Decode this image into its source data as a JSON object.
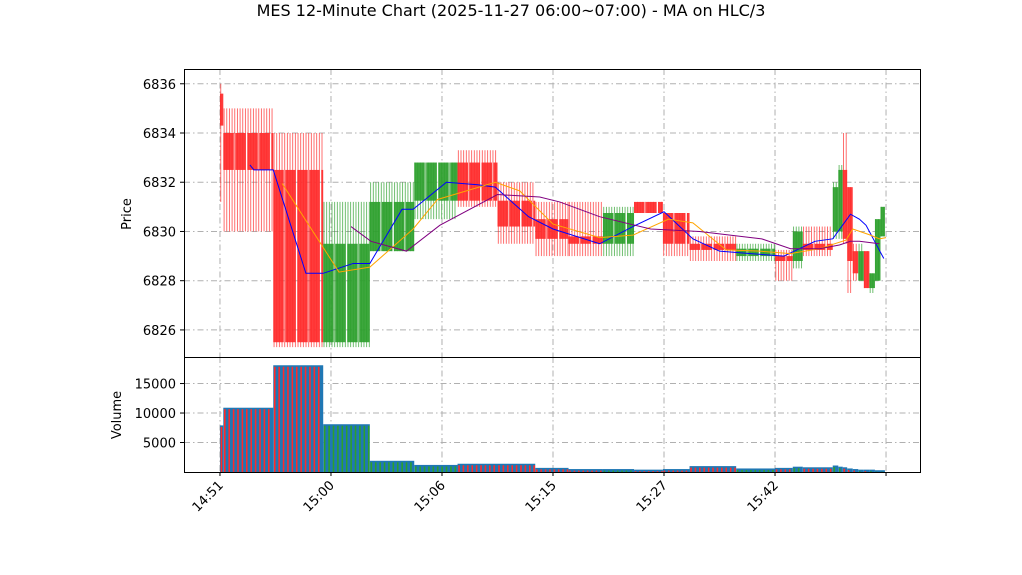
{
  "title": "MES 12-Minute Chart (2025-11-27 06:00~07:00) - MA on HLC/3",
  "colors": {
    "up": "#2ca02c",
    "down": "#ff2a2a",
    "volume_edge": "#1f77b4",
    "ma_fast": "#0000ff",
    "ma_mid": "#ffa500",
    "ma_slow": "#800080",
    "grid": "#b0b0b0"
  },
  "chart_data": {
    "type": "candlestick",
    "title": "MES 12-Minute Chart (2025-11-27 06:00~07:00) - MA on HLC/3",
    "price_panel": {
      "ylabel": "Price",
      "ylim": [
        6824.9,
        6836.6
      ],
      "yticks": [
        6826,
        6828,
        6830,
        6832,
        6834,
        6836
      ],
      "grid": true
    },
    "volume_panel": {
      "ylabel": "Volume",
      "ylim": [
        0,
        19500
      ],
      "yticks": [
        5000,
        10000,
        15000
      ],
      "grid": true
    },
    "x_axis": {
      "xlim": [
        -16.2,
        315.3
      ],
      "ticks": [
        0,
        50,
        100,
        150,
        200,
        250,
        300
      ],
      "tick_labels": [
        "14:51",
        "15:00",
        "15:06",
        "15:15",
        "15:27",
        "15:42",
        ""
      ]
    },
    "candles": [
      {
        "x": [
          0,
          1.5
        ],
        "o": 6835.6,
        "h": 6836,
        "l": 6831.2,
        "c": 6834.3,
        "v": 7900
      },
      {
        "x": [
          1.5,
          24
        ],
        "o": 6834,
        "h": 6835,
        "l": 6830,
        "c": 6832.5,
        "v": 10900
      },
      {
        "x": [
          24,
          46.5
        ],
        "o": 6832.5,
        "h": 6834,
        "l": 6825.3,
        "c": 6825.5,
        "v": 18100
      },
      {
        "x": [
          46.5,
          67.5
        ],
        "o": 6825.5,
        "h": 6831.2,
        "l": 6825.3,
        "c": 6829.5,
        "v": 8100
      },
      {
        "x": [
          67.5,
          87.5
        ],
        "o": 6829.2,
        "h": 6832,
        "l": 6829.2,
        "c": 6831.2,
        "v": 1900
      },
      {
        "x": [
          87.5,
          107
        ],
        "o": 6831.25,
        "h": 6832.8,
        "l": 6830.5,
        "c": 6832.8,
        "v": 1200
      },
      {
        "x": [
          107,
          125
        ],
        "o": 6832.8,
        "h": 6833.3,
        "l": 6831,
        "c": 6831.25,
        "v": 1400
      },
      {
        "x": [
          125,
          142
        ],
        "o": 6831.25,
        "h": 6832,
        "l": 6829.5,
        "c": 6830.2,
        "v": 1400
      },
      {
        "x": [
          142,
          157
        ],
        "o": 6830.5,
        "h": 6831.2,
        "l": 6829,
        "c": 6829.7,
        "v": 700
      },
      {
        "x": [
          157,
          172.5
        ],
        "o": 6829.8,
        "h": 6831.2,
        "l": 6829,
        "c": 6829.5,
        "v": 500
      },
      {
        "x": [
          172.5,
          186.5
        ],
        "o": 6829.5,
        "h": 6831,
        "l": 6829,
        "c": 6830.75,
        "v": 500
      },
      {
        "x": [
          186.5,
          199.5
        ],
        "o": 6831.2,
        "h": 6831.2,
        "l": 6830.75,
        "c": 6830.75,
        "v": 400
      },
      {
        "x": [
          199.5,
          211.5
        ],
        "o": 6830.75,
        "h": 6830.75,
        "l": 6829,
        "c": 6829.5,
        "v": 500
      },
      {
        "x": [
          211.5,
          232.5
        ],
        "o": 6829.5,
        "h": 6829.8,
        "l": 6828.8,
        "c": 6829.25,
        "v": 1000
      },
      {
        "x": [
          232.5,
          250
        ],
        "o": 6829,
        "h": 6829.5,
        "l": 6828.8,
        "c": 6829.3,
        "v": 600
      },
      {
        "x": [
          250,
          258
        ],
        "o": 6829,
        "h": 6829.25,
        "l": 6828,
        "c": 6828.8,
        "v": 700
      },
      {
        "x": [
          258,
          262.5
        ],
        "o": 6828.8,
        "h": 6830.2,
        "l": 6828.5,
        "c": 6830,
        "v": 900
      },
      {
        "x": [
          262.5,
          276
        ],
        "o": 6829.5,
        "h": 6830.2,
        "l": 6829,
        "c": 6829.25,
        "v": 800
      },
      {
        "x": [
          276,
          278.5
        ],
        "o": 6830,
        "h": 6832,
        "l": 6829.7,
        "c": 6831.8,
        "v": 1100
      },
      {
        "x": [
          278.5,
          280.5
        ],
        "o": 6830,
        "h": 6832.7,
        "l": 6829.7,
        "c": 6832.5,
        "v": 900
      },
      {
        "x": [
          280.5,
          282.5
        ],
        "o": 6832.5,
        "h": 6834,
        "l": 6829.5,
        "c": 6829.7,
        "v": 800
      },
      {
        "x": [
          282.5,
          285
        ],
        "o": 6831.8,
        "h": 6831.8,
        "l": 6827.5,
        "c": 6828.8,
        "v": 600
      },
      {
        "x": [
          285,
          287.5
        ],
        "o": 6829.2,
        "h": 6829.5,
        "l": 6828,
        "c": 6828.3,
        "v": 500
      },
      {
        "x": [
          287.5,
          290
        ],
        "o": 6828,
        "h": 6829.5,
        "l": 6828,
        "c": 6829.2,
        "v": 400
      },
      {
        "x": [
          290,
          292.5
        ],
        "o": 6829.2,
        "h": 6829.2,
        "l": 6827.7,
        "c": 6827.7,
        "v": 400
      },
      {
        "x": [
          292.5,
          295
        ],
        "o": 6827.7,
        "h": 6828.3,
        "l": 6827.5,
        "c": 6828.3,
        "v": 400
      },
      {
        "x": [
          295,
          297.5
        ],
        "o": 6828,
        "h": 6830.5,
        "l": 6828,
        "c": 6830.5,
        "v": 300
      },
      {
        "x": [
          297.5,
          299.5
        ],
        "o": 6829.8,
        "h": 6831,
        "l": 6829.8,
        "c": 6831,
        "v": 300
      }
    ],
    "moving_averages": [
      {
        "color": "#0000ff",
        "points": [
          [
            13.5,
            6832.7
          ],
          [
            15.3,
            6832.5
          ],
          [
            24,
            6832.5
          ],
          [
            38.7,
            6828.3
          ],
          [
            46.5,
            6828.3
          ],
          [
            60,
            6828.7
          ],
          [
            67.5,
            6828.7
          ],
          [
            82,
            6830.9
          ],
          [
            87,
            6830.9
          ],
          [
            102,
            6832
          ],
          [
            116,
            6831.9
          ],
          [
            124,
            6831.8
          ],
          [
            139,
            6830.6
          ],
          [
            150,
            6830.1
          ],
          [
            171,
            6829.5
          ],
          [
            186,
            6830.2
          ],
          [
            200,
            6830.8
          ],
          [
            213,
            6829.7
          ],
          [
            225,
            6829.2
          ],
          [
            239,
            6829.1
          ],
          [
            254,
            6829
          ],
          [
            268,
            6829.6
          ],
          [
            276,
            6829.7
          ],
          [
            284,
            6830.7
          ],
          [
            288,
            6830.5
          ],
          [
            291,
            6830.25
          ],
          [
            299,
            6828.9
          ]
        ]
      },
      {
        "color": "#ffa500",
        "points": [
          [
            28,
            6831.95
          ],
          [
            53.6,
            6828.35
          ],
          [
            67.5,
            6828.55
          ],
          [
            87,
            6830.1
          ],
          [
            98,
            6831.3
          ],
          [
            124,
            6832
          ],
          [
            135,
            6831.65
          ],
          [
            150,
            6830.3
          ],
          [
            171,
            6829.75
          ],
          [
            186,
            6829.85
          ],
          [
            202,
            6830.5
          ],
          [
            213,
            6830.35
          ],
          [
            228,
            6829.25
          ],
          [
            243,
            6829.2
          ],
          [
            257,
            6829.1
          ],
          [
            270,
            6829.3
          ],
          [
            282,
            6829.65
          ],
          [
            285,
            6830.1
          ],
          [
            293,
            6829.85
          ],
          [
            297,
            6829.7
          ],
          [
            300,
            6829.75
          ]
        ]
      },
      {
        "color": "#800080",
        "points": [
          [
            59,
            6830.2
          ],
          [
            68,
            6829.6
          ],
          [
            84,
            6829.2
          ],
          [
            99,
            6830.25
          ],
          [
            125,
            6831.5
          ],
          [
            144,
            6831.4
          ],
          [
            153,
            6831.2
          ],
          [
            171,
            6830.6
          ],
          [
            194,
            6830.1
          ],
          [
            216,
            6830
          ],
          [
            244,
            6829.7
          ],
          [
            257,
            6829.3
          ],
          [
            270,
            6829.3
          ],
          [
            279,
            6829.45
          ],
          [
            284,
            6829.6
          ],
          [
            288,
            6829.6
          ],
          [
            297,
            6829.5
          ]
        ]
      }
    ]
  }
}
